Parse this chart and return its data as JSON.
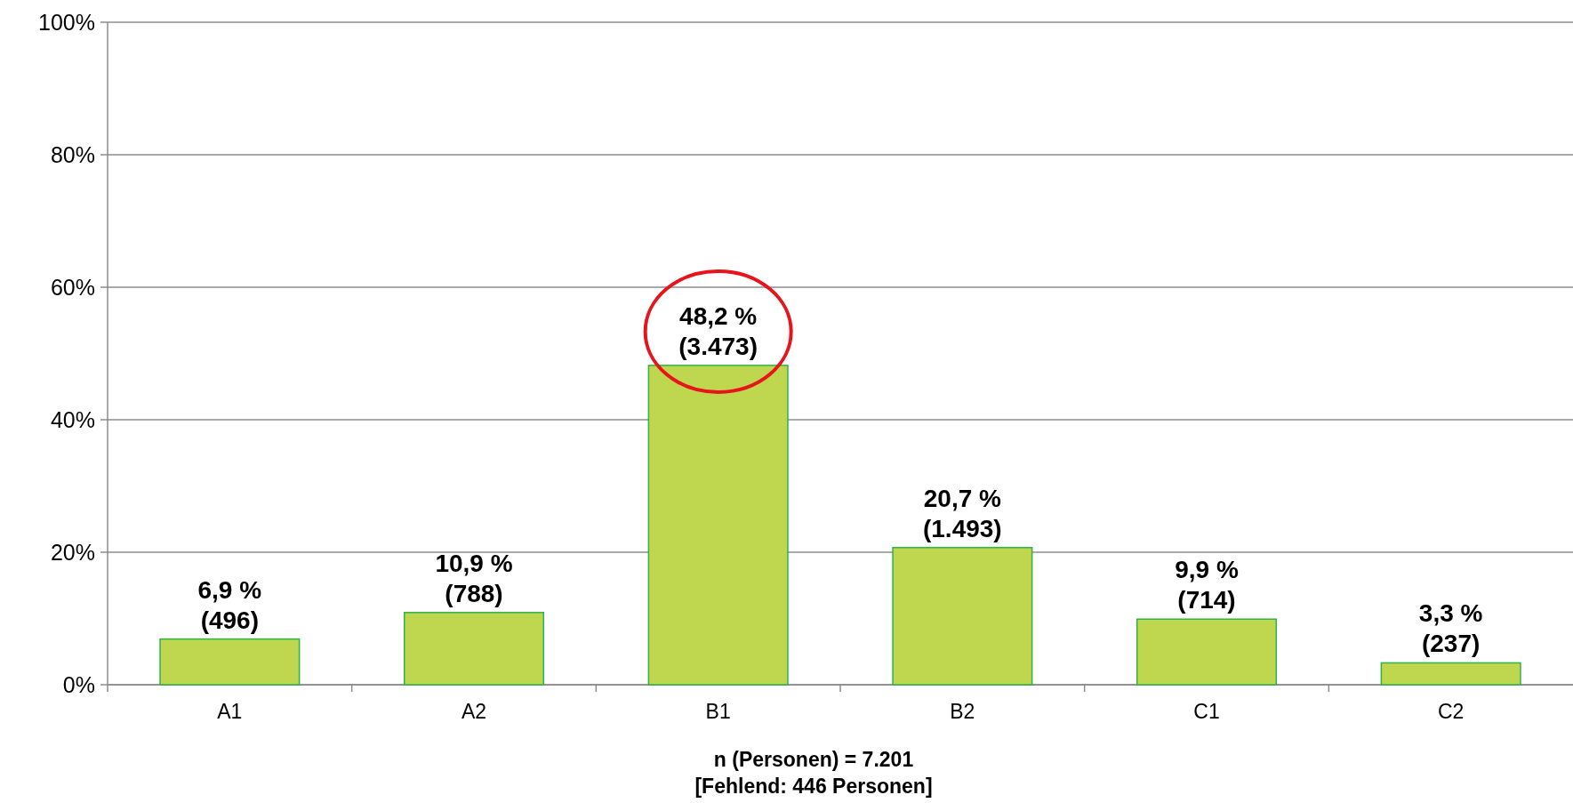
{
  "chart_data": {
    "type": "bar",
    "xlabel": "n (Personen) = 7.201\n[Fehlend: 446 Personen]",
    "categories": [
      "A1",
      "A2",
      "B1",
      "B2",
      "C1",
      "C2"
    ],
    "values": [
      6.9,
      10.9,
      48.2,
      20.7,
      9.9,
      3.3
    ],
    "value_labels": [
      "6,9 %\n(496)",
      "10,9 %\n(788)",
      "48,2 %\n(3.473)",
      "20,7 %\n(1.493)",
      "9,9 %\n(714)",
      "3,3 %\n(237)"
    ],
    "color": "#bfd64f",
    "ylim": [
      0,
      100
    ],
    "yticks": [
      {
        "value": 0,
        "label": "0%"
      },
      {
        "value": 20,
        "label": "20%"
      },
      {
        "value": 40,
        "label": "40%"
      },
      {
        "value": 60,
        "label": "60%"
      },
      {
        "value": 80,
        "label": "80%"
      },
      {
        "value": 100,
        "label": "100%"
      }
    ],
    "grid": "y"
  }
}
